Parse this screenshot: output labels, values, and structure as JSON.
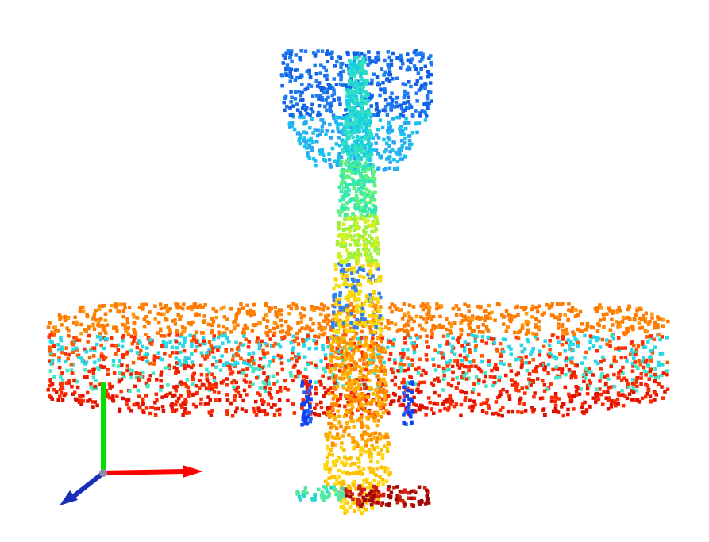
{
  "viewer": {
    "background": "#ffffff",
    "icon_name": "point-cloud-viewer",
    "model": "airplane",
    "colormap": "jet",
    "colormap_stops": [
      "#00007f",
      "#0000ff",
      "#0080ff",
      "#00ffff",
      "#80ff80",
      "#ffff00",
      "#ff8000",
      "#ff0000",
      "#7f0000"
    ]
  },
  "axes_gizmo": {
    "icon_name": "xyz-axes-gizmo-icon",
    "x_color": "#ff0000",
    "y_color": "#00e000",
    "z_color": "#1a2fb8"
  }
}
